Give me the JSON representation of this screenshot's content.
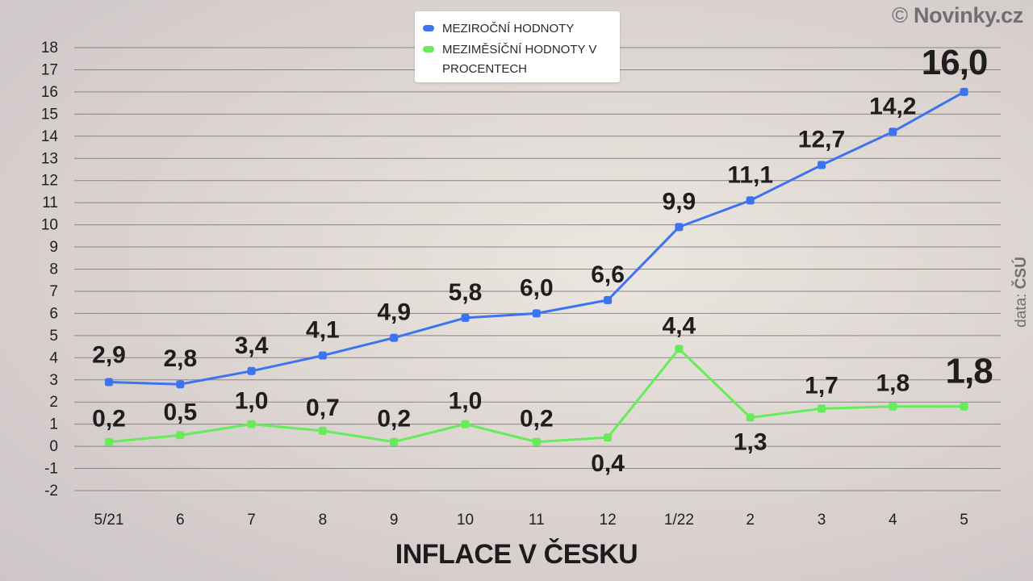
{
  "chart_data": {
    "type": "line",
    "title": "INFLACE V ČESKU",
    "categories": [
      "5/21",
      "6",
      "7",
      "8",
      "9",
      "10",
      "11",
      "12",
      "1/22",
      "2",
      "3",
      "4",
      "5"
    ],
    "y_ticks": [
      "18",
      "17",
      "16",
      "15",
      "14",
      "13",
      "12",
      "11",
      "10",
      "9",
      "8",
      "7",
      "6",
      "5",
      "4",
      "3",
      "2",
      "1",
      "0",
      "-1",
      "-2"
    ],
    "ylim": [
      -2,
      18
    ],
    "grid": true,
    "legend_position": "top-center",
    "series": [
      {
        "name": "MEZIROČNÍ HODNOTY",
        "color": "#3c73f0",
        "values": [
          2.9,
          2.8,
          3.4,
          4.1,
          4.9,
          5.8,
          6.0,
          6.6,
          9.9,
          11.1,
          12.7,
          14.2,
          16.0
        ],
        "labels": [
          "2,9",
          "2,8",
          "3,4",
          "4,1",
          "4,9",
          "5,8",
          "6,0",
          "6,6",
          "9,9",
          "11,1",
          "12,7",
          "14,2",
          "16,0"
        ]
      },
      {
        "name": "MEZIMĚSÍČNÍ HODNOTY V PROCENTECH",
        "color": "#66ec5a",
        "values": [
          0.2,
          0.5,
          1.0,
          0.7,
          0.2,
          1.0,
          0.2,
          0.4,
          4.4,
          1.3,
          1.7,
          1.8,
          1.8
        ],
        "labels": [
          "0,2",
          "0,5",
          "1,0",
          "0,7",
          "0,2",
          "1,0",
          "0,2",
          "0,4",
          "4,4",
          "1,3",
          "1,7",
          "1,8",
          "1,8"
        ]
      }
    ]
  },
  "legend": {
    "item1": "MEZIROČNÍ HODNOTY",
    "item2": "MEZIMĚSÍČNÍ HODNOTY V PROCENTECH"
  },
  "copyright": {
    "symbol": "©",
    "brand": "Novinky.cz"
  },
  "source": {
    "prefix": "data:",
    "name": "ČSÚ"
  }
}
